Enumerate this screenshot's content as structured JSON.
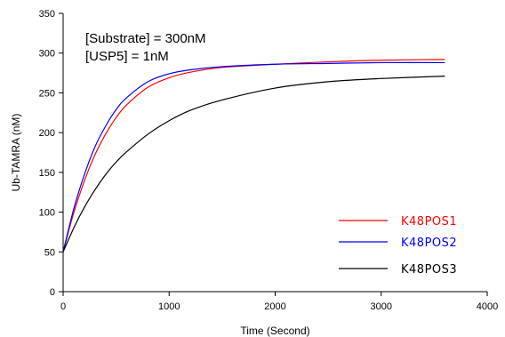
{
  "chart_data": {
    "type": "line",
    "xlabel": "Time (Second)",
    "ylabel": "Ub-TAMRA (nM)",
    "xlim": [
      0,
      4000
    ],
    "ylim": [
      0,
      350
    ],
    "xticks": [
      0,
      1000,
      2000,
      3000,
      4000
    ],
    "yticks": [
      0,
      50,
      100,
      150,
      200,
      250,
      300,
      350
    ],
    "grid": false,
    "legend_position": "bottom-right",
    "annotations": [
      "[Substrate] = 300nM",
      "[USP5] = 1nM"
    ],
    "series": [
      {
        "name": "K48POS1",
        "color": "#ff0000",
        "x": [
          0,
          100,
          200,
          300,
          400,
          500,
          600,
          800,
          1000,
          1200,
          1500,
          2000,
          2500,
          3000,
          3600
        ],
        "y": [
          50,
          99,
          139,
          172,
          198,
          219,
          235,
          257,
          269,
          276,
          282,
          286,
          289,
          291,
          292
        ]
      },
      {
        "name": "K48POS2",
        "color": "#0000ff",
        "x": [
          0,
          100,
          200,
          300,
          400,
          500,
          600,
          800,
          1000,
          1200,
          1500,
          2000,
          2500,
          3000,
          3600
        ],
        "y": [
          50,
          104,
          147,
          182,
          208,
          229,
          244,
          264,
          274,
          279,
          283,
          286,
          287,
          288,
          288
        ]
      },
      {
        "name": "K48POS3",
        "color": "#000000",
        "x": [
          0,
          100,
          200,
          300,
          400,
          500,
          600,
          800,
          1000,
          1200,
          1500,
          2000,
          2500,
          3000,
          3600
        ],
        "y": [
          50,
          80,
          106,
          128,
          147,
          163,
          176,
          198,
          215,
          228,
          241,
          256,
          264,
          268,
          271
        ]
      }
    ]
  }
}
